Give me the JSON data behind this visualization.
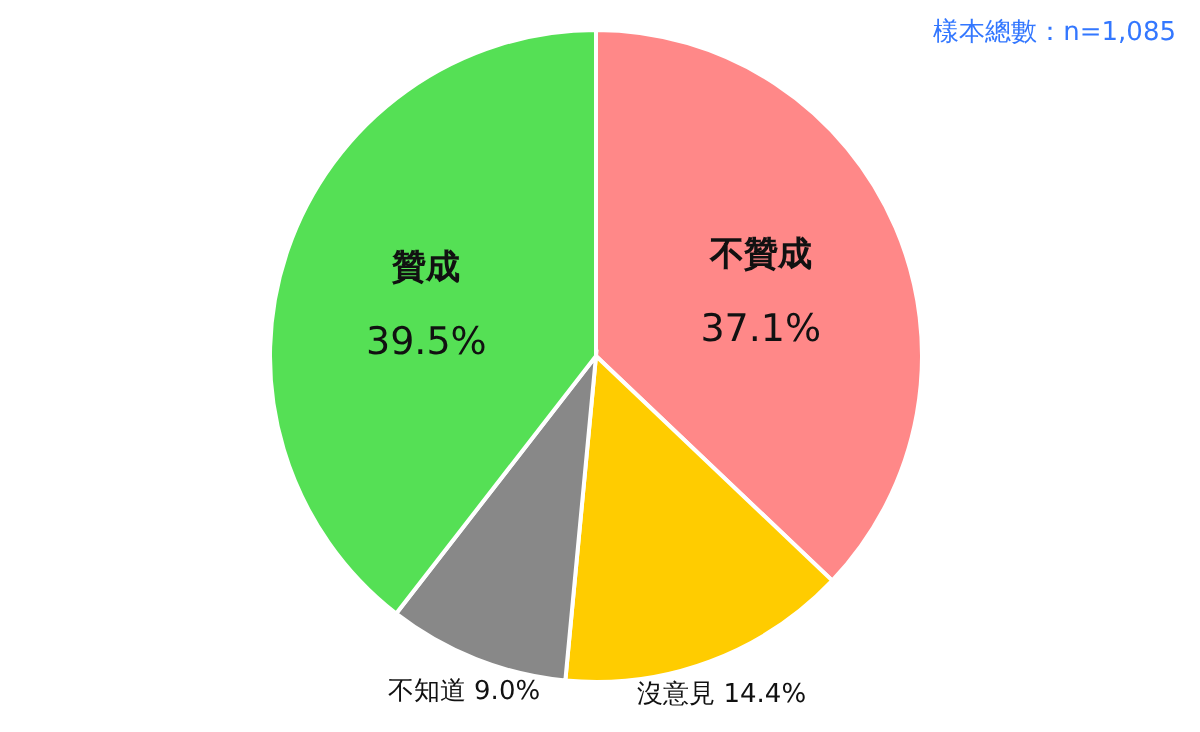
{
  "chart_data": {
    "type": "pie",
    "categories": [
      "不贊成",
      "沒意見",
      "不知道",
      "贊成"
    ],
    "values": [
      37.1,
      14.4,
      9.0,
      39.5
    ],
    "colors": [
      "#ff8888",
      "#ffcc00",
      "#888888",
      "#55e055"
    ],
    "value_labels": [
      "37.1%",
      "14.4%",
      "9.0%",
      "39.5%"
    ],
    "annotations": [
      "樣本總數：n=1,085"
    ]
  }
}
